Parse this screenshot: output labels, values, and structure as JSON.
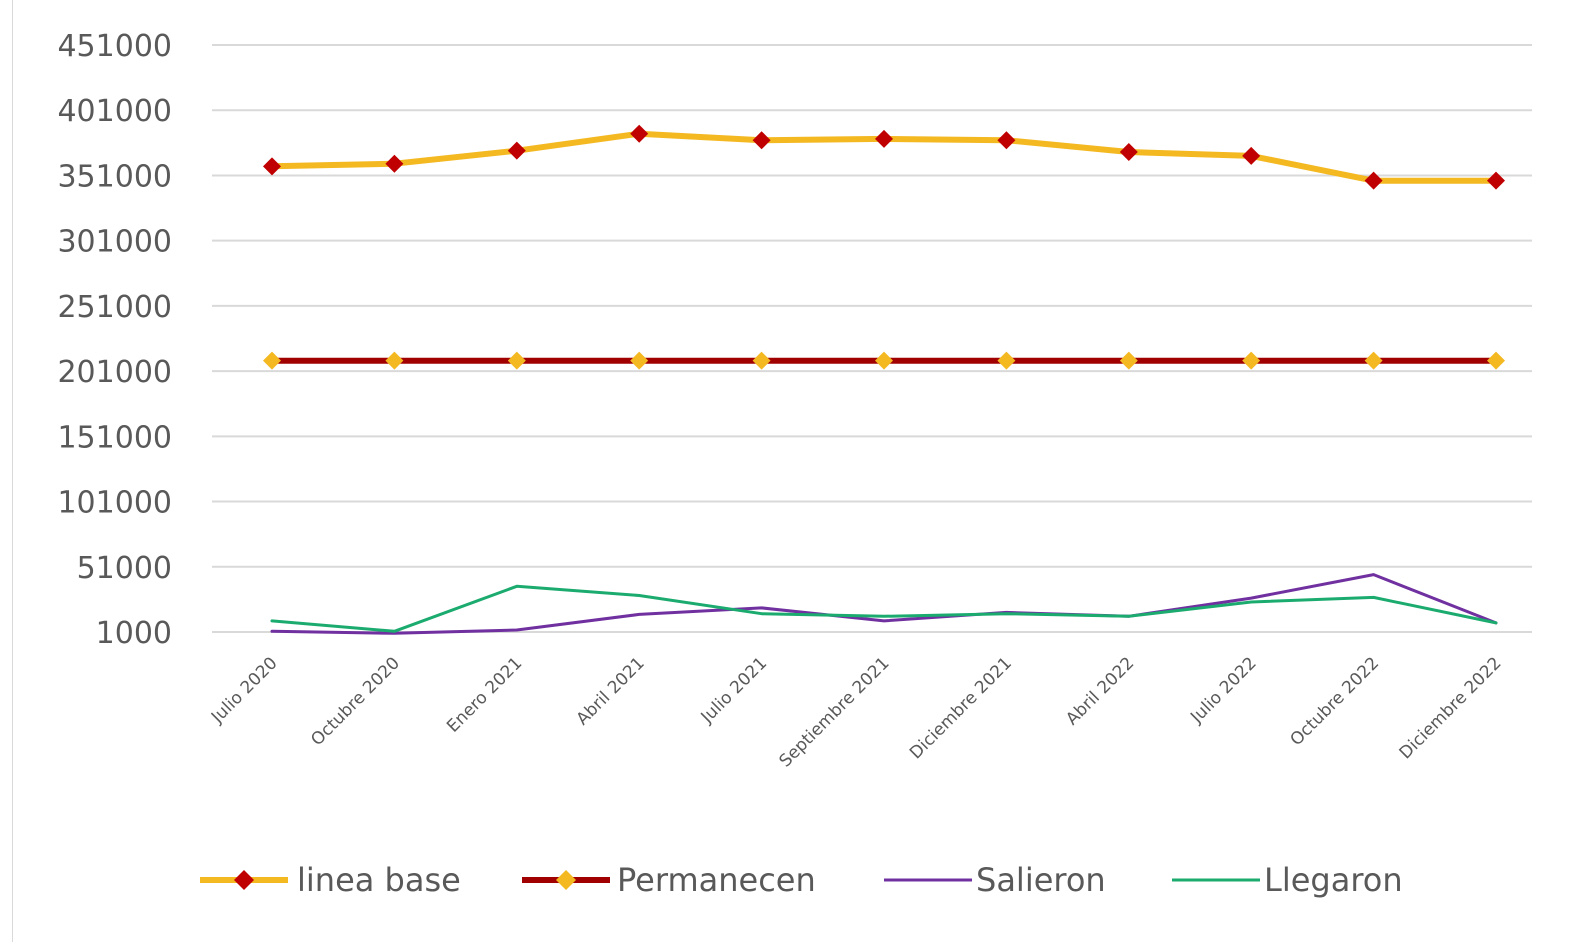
{
  "chart_data": {
    "type": "line",
    "title": "",
    "xlabel": "",
    "ylabel": "",
    "categories": [
      "Julio 2020",
      "Octubre 2020",
      "Enero 2021",
      "Abril 2021",
      "Julio 2021",
      "Septiembre 2021",
      "Diciembre 2021",
      "Abril 2022",
      "Julio 2022",
      "Octubre 2022",
      "Diciembre 2022"
    ],
    "y_ticks": [
      "451000",
      "401000",
      "351000",
      "301000",
      "251000",
      "201000",
      "151000",
      "101000",
      "51000",
      "1000"
    ],
    "y_tick_values": [
      451000,
      401000,
      351000,
      301000,
      251000,
      201000,
      151000,
      101000,
      51000,
      1000
    ],
    "ylim": [
      1000,
      451000
    ],
    "grid": true,
    "legend_position": "bottom",
    "series": [
      {
        "name": "linea base",
        "line_color": "#f4b821",
        "marker_color": "#c00000",
        "marker": "diamond",
        "values": [
          358000,
          360000,
          370000,
          383000,
          378000,
          379000,
          378000,
          369000,
          366000,
          347000,
          347000
        ]
      },
      {
        "name": "Permanecen",
        "line_color": "#a00000",
        "marker_color": "#f4b821",
        "marker": "diamond",
        "values": [
          209000,
          209000,
          209000,
          209000,
          209000,
          209000,
          209000,
          209000,
          209000,
          209000,
          209000
        ]
      },
      {
        "name": "Salieron",
        "line_color": "#7030a0",
        "marker": "none",
        "values": [
          1500,
          0,
          2500,
          14500,
          19500,
          9500,
          16000,
          13000,
          27000,
          45000,
          8000
        ]
      },
      {
        "name": "Llegaron",
        "line_color": "#1bab6f",
        "marker": "none",
        "values": [
          9500,
          1500,
          36000,
          29000,
          15000,
          13000,
          15000,
          13000,
          24000,
          27500,
          8000
        ]
      }
    ]
  }
}
